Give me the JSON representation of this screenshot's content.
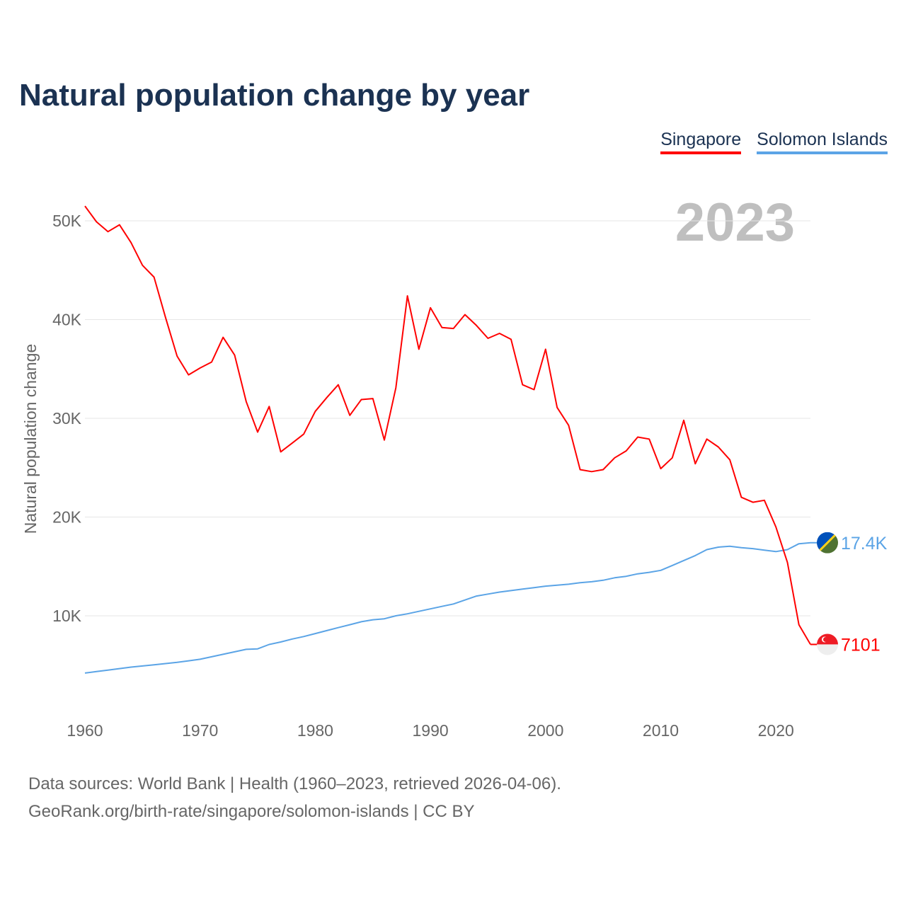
{
  "title": "Natural population change by year",
  "legend": [
    "Singapore",
    "Solomon Islands"
  ],
  "footer": {
    "line1": "Data sources: World Bank | Health (1960–2023, retrieved 2026-04-06).",
    "line2": "GeoRank.org/birth-rate/singapore/solomon-islands | CC BY"
  },
  "chart_data": {
    "type": "line",
    "title": "Natural population change by year",
    "ylabel": "Natural population change",
    "xlabel": "",
    "year_watermark": "2023",
    "xlim": [
      1960,
      2023
    ],
    "ylim": [
      0,
      52000
    ],
    "x_ticks": [
      "1960",
      "1970",
      "1980",
      "1990",
      "2000",
      "2010",
      "2020"
    ],
    "y_ticks": [
      "10K",
      "20K",
      "30K",
      "40K",
      "50K"
    ],
    "grid": true,
    "legend_position": "top-right",
    "x": [
      1960,
      1961,
      1962,
      1963,
      1964,
      1965,
      1966,
      1967,
      1968,
      1969,
      1970,
      1971,
      1972,
      1973,
      1974,
      1975,
      1976,
      1977,
      1978,
      1979,
      1980,
      1981,
      1982,
      1983,
      1984,
      1985,
      1986,
      1987,
      1988,
      1989,
      1990,
      1991,
      1992,
      1993,
      1994,
      1995,
      1996,
      1997,
      1998,
      1999,
      2000,
      2001,
      2002,
      2003,
      2004,
      2005,
      2006,
      2007,
      2008,
      2009,
      2010,
      2011,
      2012,
      2013,
      2014,
      2015,
      2016,
      2017,
      2018,
      2019,
      2020,
      2021,
      2022,
      2023
    ],
    "series": [
      {
        "name": "Singapore",
        "color": "#ff0000",
        "end_label": "7101",
        "values": [
          51500,
          49900,
          48900,
          49600,
          47800,
          45500,
          44300,
          40200,
          36300,
          34400,
          35100,
          35700,
          38200,
          36400,
          31700,
          28600,
          31200,
          26600,
          27500,
          28400,
          30700,
          32100,
          33400,
          30300,
          31900,
          32000,
          27800,
          33100,
          42400,
          37000,
          41200,
          39200,
          39100,
          40500,
          39400,
          38100,
          38600,
          38000,
          33400,
          32900,
          37000,
          31100,
          29300,
          24800,
          24600,
          24800,
          26000,
          26700,
          28100,
          27900,
          24900,
          26000,
          29800,
          25400,
          27900,
          27100,
          25800,
          22000,
          21500,
          21700,
          19000,
          15400,
          9100,
          7101
        ]
      },
      {
        "name": "Solomon Islands",
        "color": "#5ba4e6",
        "end_label": "17.4K",
        "values": [
          4200,
          4350,
          4500,
          4650,
          4800,
          4920,
          5040,
          5160,
          5280,
          5440,
          5600,
          5850,
          6100,
          6350,
          6600,
          6650,
          7100,
          7350,
          7650,
          7900,
          8200,
          8500,
          8800,
          9100,
          9400,
          9600,
          9700,
          10000,
          10200,
          10450,
          10700,
          10950,
          11200,
          11600,
          12000,
          12200,
          12400,
          12550,
          12700,
          12850,
          13000,
          13100,
          13200,
          13350,
          13450,
          13600,
          13850,
          14000,
          14250,
          14400,
          14600,
          15100,
          15600,
          16100,
          16700,
          16950,
          17050,
          16900,
          16800,
          16650,
          16500,
          16700,
          17300,
          17400
        ]
      }
    ]
  }
}
